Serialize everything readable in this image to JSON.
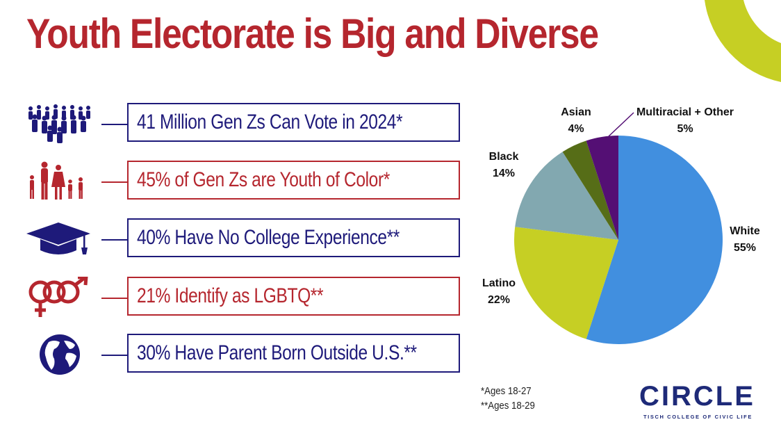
{
  "title": "Youth Electorate is Big and Diverse",
  "colors": {
    "red": "#b5262e",
    "navy": "#1e1a7a",
    "accent": "#c6cf24"
  },
  "stats": [
    {
      "text": "41 Million Gen Zs Can Vote in 2024*",
      "icon": "crowd-icon",
      "color": "navy"
    },
    {
      "text": "45% of Gen Zs are Youth of Color*",
      "icon": "family-icon",
      "color": "red"
    },
    {
      "text": "40% Have No College Experience**",
      "icon": "graduation-cap-icon",
      "color": "navy"
    },
    {
      "text": "21% Identify as LGBTQ**",
      "icon": "gender-symbols-icon",
      "color": "red"
    },
    {
      "text": "30% Have Parent Born Outside U.S.**",
      "icon": "globe-icon",
      "color": "navy"
    }
  ],
  "chart_data": {
    "type": "pie",
    "title": "",
    "categories": [
      "White",
      "Latino",
      "Black",
      "Asian",
      "Multiracial + Other"
    ],
    "values": [
      55,
      22,
      14,
      4,
      5
    ],
    "value_labels": [
      "55%",
      "22%",
      "14%",
      "4%",
      "5%"
    ],
    "colors": [
      "#418fdf",
      "#c6cf24",
      "#82a8b0",
      "#566d17",
      "#540f74"
    ],
    "legend": "none"
  },
  "footnotes": [
    "*Ages 18-27",
    "**Ages 18-29"
  ],
  "logo": {
    "wordmark": "CIRCLE",
    "tagline": "TISCH COLLEGE OF CIVIC LIFE"
  }
}
